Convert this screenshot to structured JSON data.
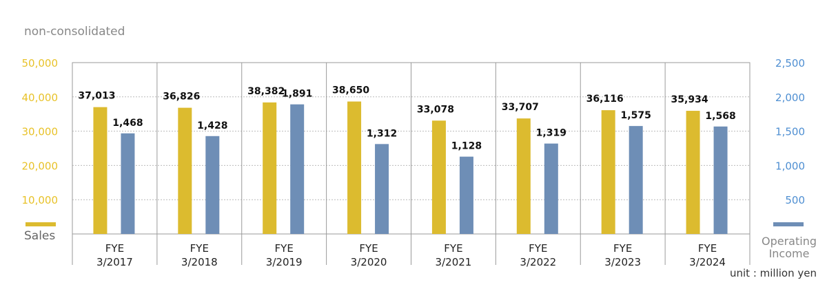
{
  "subtitle": "non-consolidated",
  "unit_label": "unit : million yen",
  "colors": {
    "sales": "#DCBB2F",
    "income": "#6E8EB6",
    "left_axis": "#E8C229",
    "right_axis": "#4F8FD2",
    "label_gray": "#888888"
  },
  "legend": {
    "left_name": "Sales",
    "right_name": [
      "Operating",
      "Income"
    ]
  },
  "chart_data": {
    "type": "bar",
    "categories": [
      [
        "FYE",
        "3/2017"
      ],
      [
        "FYE",
        "3/2018"
      ],
      [
        "FYE",
        "3/2019"
      ],
      [
        "FYE",
        "3/2020"
      ],
      [
        "FYE",
        "3/2021"
      ],
      [
        "FYE",
        "3/2022"
      ],
      [
        "FYE",
        "3/2023"
      ],
      [
        "FYE",
        "3/2024"
      ]
    ],
    "series": [
      {
        "name": "Sales",
        "axis": "left",
        "values": [
          37013,
          36826,
          38382,
          38650,
          33078,
          33707,
          36116,
          35934
        ],
        "labels": [
          "37,013",
          "36,826",
          "38,382",
          "38,650",
          "33,078",
          "33,707",
          "36,116",
          "35,934"
        ]
      },
      {
        "name": "Operating Income",
        "axis": "right",
        "values": [
          1468,
          1428,
          1891,
          1312,
          1128,
          1319,
          1575,
          1568
        ],
        "labels": [
          "1,468",
          "1,428",
          "1,891",
          "1,312",
          "1,128",
          "1,319",
          "1,575",
          "1,568"
        ]
      }
    ],
    "left_axis": {
      "min": 0,
      "max": 50000,
      "ticks": [
        10000,
        20000,
        30000,
        40000,
        50000
      ],
      "tick_labels": [
        "10,000",
        "20,000",
        "30,000",
        "40,000",
        "50,000"
      ]
    },
    "right_axis": {
      "min": 0,
      "max": 2500,
      "ticks": [
        500,
        1000,
        1500,
        2000,
        2500
      ],
      "tick_labels": [
        "500",
        "1,000",
        "1,500",
        "2,000",
        "2,500"
      ]
    },
    "grid": true,
    "legend_position": "bottom-corners"
  }
}
